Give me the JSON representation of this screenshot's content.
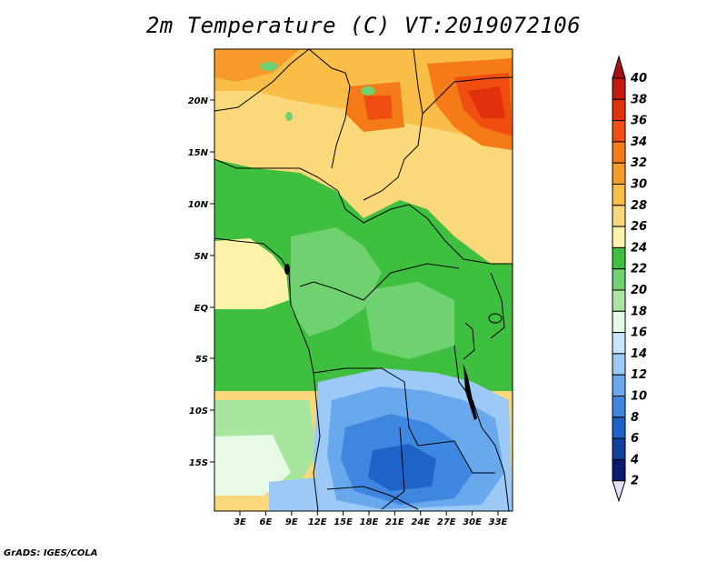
{
  "title": "2m Temperature (C) VT:2019072106",
  "credit": "GrADS: IGES/COLA",
  "map": {
    "lat_ticks": [
      "20N",
      "15N",
      "10N",
      "5N",
      "EQ",
      "5S",
      "10S",
      "15S"
    ],
    "lon_ticks": [
      "3E",
      "6E",
      "9E",
      "12E",
      "15E",
      "18E",
      "21E",
      "24E",
      "27E",
      "30E",
      "33E"
    ]
  },
  "colorbar": {
    "levels": [
      "40",
      "38",
      "36",
      "34",
      "32",
      "30",
      "28",
      "26",
      "24",
      "22",
      "20",
      "18",
      "16",
      "14",
      "12",
      "10",
      "8",
      "6",
      "4",
      "2"
    ],
    "colors_top_to_bottom": [
      "#a50f15",
      "#c41a10",
      "#e0300c",
      "#f04e10",
      "#f57a18",
      "#f89a2a",
      "#f9bd48",
      "#fbd97a",
      "#fdf2a8",
      "#3fbf3f",
      "#6fd16f",
      "#a8e6a0",
      "#e6fae6",
      "#c8e6fa",
      "#9cc9f5",
      "#6aa8ee",
      "#3e86e0",
      "#2063c8",
      "#1240a0",
      "#0a1a70",
      "#e6e0f5"
    ]
  }
}
